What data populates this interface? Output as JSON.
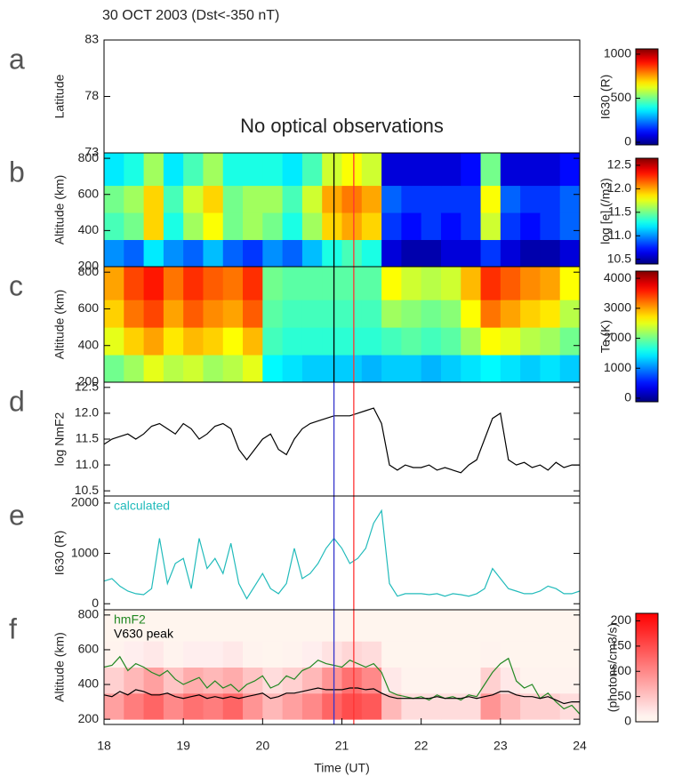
{
  "chart_data": [
    {
      "type": "heatmap",
      "panel": "a",
      "title": "30 OCT 2003 (Dst<-350 nT)",
      "ylabel": "Latitude",
      "annotation": "No optical observations",
      "xlim": [
        18,
        24
      ],
      "ylim": [
        73,
        83
      ],
      "yticks": [
        73,
        78,
        83
      ],
      "colormap": "jet",
      "cbar_label": "I630 (R)",
      "cbar_lim": [
        -30,
        1060
      ],
      "cbar_ticks": [
        0,
        500,
        1000
      ]
    },
    {
      "type": "heatmap",
      "panel": "b",
      "ylabel": "Altitude (km)",
      "xlim": [
        18,
        24
      ],
      "ylim": [
        200,
        830
      ],
      "yticks": [
        200,
        400,
        600,
        800
      ],
      "colormap": "jet",
      "cbar_label": "log [e] (/m3)",
      "cbar_lim": [
        10.4,
        12.65
      ],
      "cbar_ticks": [
        10.5,
        {
          "value": 11,
          "label": "11.0"
        },
        11.5,
        {
          "value": 12,
          "label": "12.0"
        },
        12.5
      ],
      "xbins": [
        18,
        18.25,
        18.5,
        18.75,
        19,
        19.25,
        19.5,
        19.75,
        20,
        20.25,
        20.5,
        20.75,
        21,
        21.25,
        21.5,
        21.75,
        22,
        22.25,
        22.5,
        22.75,
        23,
        23.25,
        23.5,
        23.75,
        24
      ],
      "ybins": [
        200,
        350,
        500,
        650,
        830
      ],
      "z": [
        [
          11.0,
          10.9,
          11.2,
          11.0,
          10.9,
          11.1,
          10.9,
          10.8,
          11.0,
          10.9,
          11.1,
          11.3,
          11.4,
          11.3,
          10.6,
          10.5,
          10.5,
          10.6,
          10.6,
          10.8,
          10.6,
          10.5,
          10.5,
          10.6
        ],
        [
          11.4,
          11.5,
          11.9,
          11.3,
          11.6,
          11.8,
          11.5,
          11.6,
          11.5,
          11.3,
          11.6,
          11.9,
          12.0,
          11.9,
          10.8,
          10.7,
          10.8,
          10.7,
          10.8,
          11.7,
          10.8,
          10.7,
          10.8,
          10.9
        ],
        [
          11.5,
          11.6,
          11.9,
          11.4,
          11.7,
          11.9,
          11.5,
          11.6,
          11.6,
          11.4,
          11.7,
          12.0,
          12.1,
          12.0,
          10.9,
          10.8,
          10.8,
          10.8,
          10.8,
          11.8,
          10.9,
          10.8,
          10.8,
          10.9
        ],
        [
          11.2,
          11.3,
          11.6,
          11.2,
          11.4,
          11.6,
          11.3,
          11.3,
          11.3,
          11.2,
          11.4,
          11.7,
          11.8,
          11.7,
          10.6,
          10.6,
          10.6,
          10.6,
          10.7,
          11.5,
          10.6,
          10.6,
          10.6,
          10.7
        ]
      ],
      "vlines": [
        {
          "x": 20.9,
          "color": "#000000"
        },
        {
          "x": 21.15,
          "color": "#ff3333"
        }
      ]
    },
    {
      "type": "heatmap",
      "panel": "c",
      "ylabel": "Altitude (km)",
      "xlim": [
        18,
        24
      ],
      "ylim": [
        200,
        830
      ],
      "yticks": [
        200,
        400,
        600,
        800
      ],
      "colormap": "jet",
      "cbar_label": "Te (K)",
      "cbar_lim": [
        -120,
        4240
      ],
      "cbar_ticks": [
        0,
        1000,
        2000,
        3000,
        4000
      ],
      "xbins": [
        18,
        18.25,
        18.5,
        18.75,
        19,
        19.25,
        19.5,
        19.75,
        20,
        20.25,
        20.5,
        20.75,
        21,
        21.25,
        21.5,
        21.75,
        22,
        22.25,
        22.5,
        22.75,
        23,
        23.25,
        23.5,
        23.75,
        24
      ],
      "ybins": [
        200,
        350,
        500,
        650,
        830
      ],
      "z": [
        [
          2000,
          2200,
          2500,
          2300,
          2400,
          2200,
          2300,
          2500,
          1500,
          1400,
          1300,
          1300,
          1300,
          1200,
          1300,
          1300,
          1200,
          1300,
          1400,
          1500,
          1400,
          1300,
          1400,
          1300
        ],
        [
          2500,
          2800,
          3000,
          2700,
          2900,
          2800,
          2600,
          2900,
          1800,
          1700,
          1700,
          1700,
          1700,
          1700,
          1800,
          1900,
          1800,
          1900,
          2200,
          2600,
          2500,
          2300,
          2200,
          2000
        ],
        [
          2800,
          3200,
          3400,
          3000,
          3300,
          3100,
          3000,
          3300,
          1900,
          1800,
          1800,
          1800,
          1800,
          1800,
          2200,
          2100,
          2000,
          2100,
          2600,
          3200,
          3000,
          2800,
          2700,
          2300
        ],
        [
          3000,
          3400,
          3600,
          3200,
          3500,
          3300,
          3200,
          3500,
          2000,
          1900,
          1900,
          1900,
          1900,
          1900,
          2600,
          2400,
          2300,
          2400,
          2900,
          3500,
          3300,
          3100,
          3000,
          2600
        ]
      ],
      "vlines": [
        {
          "x": 20.9,
          "color": "#000000"
        },
        {
          "x": 21.15,
          "color": "#ff3333"
        }
      ]
    },
    {
      "type": "line",
      "panel": "d",
      "ylabel": "log NmF2",
      "xlim": [
        18,
        24
      ],
      "ylim": [
        10.4,
        12.6
      ],
      "yticks": [
        10.5,
        {
          "value": 11,
          "label": "11.0"
        },
        11.5,
        {
          "value": 12,
          "label": "12.0"
        },
        12.5
      ],
      "x": [
        18.0,
        18.1,
        18.2,
        18.3,
        18.4,
        18.5,
        18.6,
        18.7,
        18.8,
        18.9,
        19.0,
        19.1,
        19.2,
        19.3,
        19.4,
        19.5,
        19.6,
        19.7,
        19.8,
        19.9,
        20.0,
        20.1,
        20.2,
        20.3,
        20.4,
        20.5,
        20.6,
        20.7,
        20.8,
        20.9,
        21.0,
        21.1,
        21.2,
        21.3,
        21.4,
        21.5,
        21.6,
        21.7,
        21.8,
        21.9,
        22.0,
        22.1,
        22.2,
        22.3,
        22.4,
        22.5,
        22.6,
        22.7,
        22.8,
        22.9,
        23.0,
        23.1,
        23.2,
        23.3,
        23.4,
        23.5,
        23.6,
        23.7,
        23.8,
        23.9,
        24.0
      ],
      "series": [
        {
          "color": "#000000",
          "values": [
            11.4,
            11.5,
            11.55,
            11.6,
            11.5,
            11.6,
            11.75,
            11.8,
            11.7,
            11.6,
            11.8,
            11.7,
            11.5,
            11.6,
            11.75,
            11.8,
            11.7,
            11.3,
            11.1,
            11.3,
            11.5,
            11.6,
            11.3,
            11.2,
            11.5,
            11.7,
            11.8,
            11.85,
            11.9,
            11.95,
            11.95,
            11.95,
            12.0,
            12.05,
            12.1,
            11.8,
            11.0,
            10.9,
            11.0,
            10.95,
            10.95,
            11.0,
            10.9,
            10.95,
            10.9,
            10.85,
            11.0,
            11.1,
            11.5,
            11.9,
            12.0,
            11.1,
            11.0,
            11.05,
            10.95,
            11.0,
            10.9,
            11.05,
            10.95,
            11.0,
            11.0
          ]
        }
      ],
      "vlines": [
        {
          "x": 20.9,
          "color": "#3333cc"
        },
        {
          "x": 21.15,
          "color": "#ff3333"
        }
      ]
    },
    {
      "type": "line",
      "panel": "e",
      "ylabel": "I630 (R)",
      "xlim": [
        18,
        24
      ],
      "ylim": [
        -120,
        2140
      ],
      "yticks": [
        0,
        1000,
        2000
      ],
      "x": [
        18.0,
        18.1,
        18.2,
        18.3,
        18.4,
        18.5,
        18.6,
        18.7,
        18.8,
        18.9,
        19.0,
        19.1,
        19.2,
        19.3,
        19.4,
        19.5,
        19.6,
        19.7,
        19.8,
        19.9,
        20.0,
        20.1,
        20.2,
        20.3,
        20.4,
        20.5,
        20.6,
        20.7,
        20.8,
        20.9,
        21.0,
        21.1,
        21.2,
        21.3,
        21.4,
        21.5,
        21.6,
        21.7,
        21.8,
        21.9,
        22.0,
        22.1,
        22.2,
        22.3,
        22.4,
        22.5,
        22.6,
        22.7,
        22.8,
        22.9,
        23.0,
        23.1,
        23.2,
        23.3,
        23.4,
        23.5,
        23.6,
        23.7,
        23.8,
        23.9,
        24.0
      ],
      "series": [
        {
          "name": "calculated",
          "color": "#22bbbb",
          "values": [
            450,
            500,
            350,
            250,
            200,
            180,
            300,
            1300,
            400,
            800,
            900,
            300,
            1300,
            700,
            900,
            600,
            1200,
            400,
            100,
            350,
            600,
            300,
            200,
            400,
            1100,
            500,
            600,
            800,
            1100,
            1300,
            1100,
            800,
            900,
            1100,
            1600,
            1850,
            400,
            150,
            200,
            200,
            200,
            180,
            200,
            150,
            200,
            180,
            150,
            200,
            300,
            700,
            500,
            300,
            250,
            200,
            200,
            250,
            350,
            300,
            200,
            200,
            250
          ]
        }
      ],
      "vlines": [
        {
          "x": 20.9,
          "color": "#3333cc"
        },
        {
          "x": 21.15,
          "color": "#ff3333"
        }
      ]
    },
    {
      "type": "heatmap",
      "panel": "f",
      "ylabel": "Altitude (km)",
      "xlabel": "Time (UT)",
      "xlim": [
        18,
        24
      ],
      "xticks": [
        18,
        19,
        20,
        21,
        22,
        23,
        24
      ],
      "ylim": [
        170,
        830
      ],
      "yticks": [
        200,
        400,
        600,
        800
      ],
      "colormap": "reds",
      "cbar_label": "(photons/cm3/s)",
      "cbar_lim": [
        0,
        215
      ],
      "cbar_ticks": [
        0,
        50,
        100,
        150,
        200
      ],
      "xbins": [
        18,
        18.25,
        18.5,
        18.75,
        19,
        19.25,
        19.5,
        19.75,
        20,
        20.25,
        20.5,
        20.75,
        21,
        21.25,
        21.5,
        21.75,
        22,
        22.25,
        22.5,
        22.75,
        23,
        23.25,
        23.5,
        23.75,
        24
      ],
      "ybins": [
        200,
        350,
        500,
        650,
        830
      ],
      "z": [
        [
          80,
          110,
          130,
          100,
          120,
          110,
          130,
          90,
          60,
          80,
          100,
          130,
          150,
          140,
          60,
          30,
          30,
          30,
          30,
          90,
          60,
          40,
          40,
          30
        ],
        [
          40,
          60,
          80,
          50,
          70,
          60,
          70,
          50,
          30,
          40,
          60,
          90,
          120,
          100,
          20,
          10,
          10,
          10,
          10,
          40,
          20,
          10,
          10,
          10
        ],
        [
          10,
          15,
          20,
          10,
          15,
          15,
          20,
          10,
          5,
          10,
          15,
          25,
          35,
          30,
          5,
          3,
          3,
          3,
          3,
          10,
          5,
          3,
          3,
          3
        ],
        [
          2,
          2,
          3,
          2,
          2,
          2,
          3,
          2,
          1,
          2,
          2,
          3,
          5,
          4,
          1,
          1,
          1,
          1,
          1,
          2,
          1,
          1,
          1,
          1
        ]
      ],
      "x": [
        18.0,
        18.1,
        18.2,
        18.3,
        18.4,
        18.5,
        18.6,
        18.7,
        18.8,
        18.9,
        19.0,
        19.1,
        19.2,
        19.3,
        19.4,
        19.5,
        19.6,
        19.7,
        19.8,
        19.9,
        20.0,
        20.1,
        20.2,
        20.3,
        20.4,
        20.5,
        20.6,
        20.7,
        20.8,
        20.9,
        21.0,
        21.1,
        21.2,
        21.3,
        21.4,
        21.5,
        21.6,
        21.7,
        21.8,
        21.9,
        22.0,
        22.1,
        22.2,
        22.3,
        22.4,
        22.5,
        22.6,
        22.7,
        22.8,
        22.9,
        23.0,
        23.1,
        23.2,
        23.3,
        23.4,
        23.5,
        23.6,
        23.7,
        23.8,
        23.9,
        24.0
      ],
      "series": [
        {
          "name": "hmF2",
          "color": "#228822",
          "values": [
            500,
            510,
            560,
            480,
            520,
            500,
            470,
            450,
            480,
            430,
            400,
            420,
            440,
            380,
            420,
            380,
            400,
            360,
            400,
            420,
            450,
            380,
            400,
            450,
            430,
            480,
            500,
            540,
            520,
            510,
            500,
            540,
            520,
            500,
            520,
            470,
            360,
            340,
            330,
            320,
            330,
            310,
            340,
            320,
            330,
            310,
            340,
            330,
            400,
            470,
            520,
            550,
            420,
            380,
            400,
            320,
            350,
            300,
            260,
            280,
            230
          ]
        },
        {
          "name": "V630 peak",
          "color": "#000000",
          "values": [
            340,
            330,
            360,
            340,
            370,
            360,
            340,
            340,
            350,
            330,
            320,
            330,
            340,
            320,
            330,
            320,
            330,
            320,
            330,
            340,
            350,
            320,
            330,
            350,
            350,
            360,
            370,
            380,
            370,
            370,
            370,
            380,
            380,
            370,
            375,
            350,
            330,
            320,
            320,
            320,
            320,
            320,
            330,
            320,
            320,
            320,
            330,
            320,
            330,
            340,
            360,
            360,
            340,
            330,
            330,
            320,
            330,
            310,
            290,
            300,
            300
          ]
        }
      ],
      "vlines": [
        {
          "x": 20.9,
          "color": "#3333cc"
        },
        {
          "x": 21.15,
          "color": "#ff3333"
        }
      ]
    }
  ]
}
